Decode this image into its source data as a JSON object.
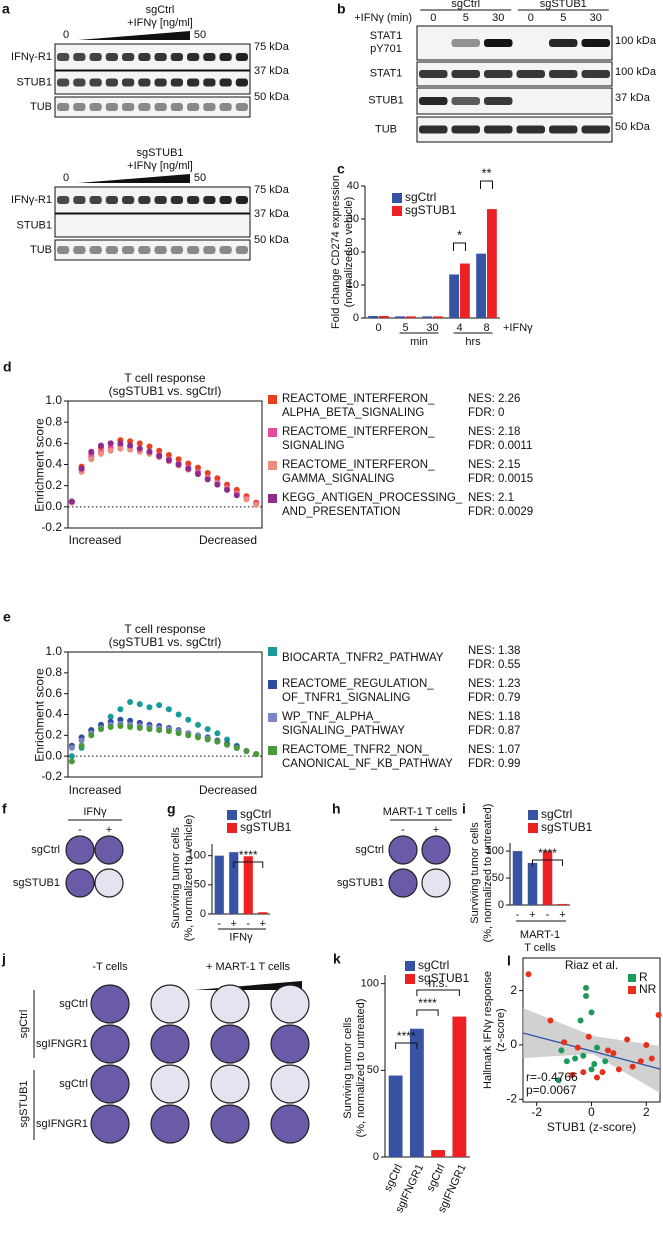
{
  "figure": {
    "a": {
      "label": "a",
      "top": {
        "group": "sgCtrl",
        "treatment": "+IFNγ [ng/ml]",
        "low": "0",
        "high": "50",
        "rows": [
          [
            "IFNγ-R1",
            "75 kDa"
          ],
          [
            "STUB1",
            "37 kDa"
          ],
          [
            "TUB",
            "50 kDa"
          ]
        ]
      },
      "bottom": {
        "group": "sgSTUB1",
        "treatment": "+IFNγ [ng/ml]",
        "low": "0",
        "high": "50",
        "rows": [
          [
            "IFNγ-R1",
            "75 kDa"
          ],
          [
            "STUB1",
            "37 kDa"
          ],
          [
            "TUB",
            "50 kDa"
          ]
        ]
      }
    },
    "b": {
      "label": "b",
      "treatment": "+IFNγ (min)",
      "lanes": [
        "0",
        "5",
        "30",
        "0",
        "5",
        "30"
      ],
      "groups": [
        "sgCtrl",
        "sgSTUB1"
      ],
      "rows": [
        [
          "STAT1\npY701",
          "100 kDa"
        ],
        [
          "STAT1",
          "100 kDa"
        ],
        [
          "STUB1",
          "37 kDa"
        ],
        [
          "TUB",
          "50 kDa"
        ]
      ]
    },
    "f": {
      "label": "f",
      "treatment": "IFNγ",
      "cols": [
        "-",
        "+"
      ],
      "rows": [
        "sgCtrl",
        "sgSTUB1"
      ]
    },
    "h": {
      "label": "h",
      "treatment": "MART-1 T cells",
      "cols": [
        "-",
        "+"
      ],
      "rows": [
        "sgCtrl",
        "sgSTUB1"
      ]
    },
    "j": {
      "label": "j",
      "control": "-T cells",
      "treatment": "+ MART-1 T cells",
      "rows": [
        "sgCtrl",
        "sgIFNGR1",
        "sgCtrl",
        "sgIFNGR1"
      ],
      "groups": [
        "sgCtrl",
        "sgSTUB1"
      ]
    }
  },
  "chart_data": [
    {
      "panel_label": "c",
      "type": "bar",
      "ylabel": "Fold change CD274 expression\n(normalized to vehicle)",
      "categories": [
        "0",
        "5",
        "30",
        "4",
        "8"
      ],
      "series": [
        {
          "name": "sgCtrl",
          "color": "#3853a4",
          "values": [
            0.6,
            0.5,
            0.5,
            13.2,
            19.5
          ]
        },
        {
          "name": "sgSTUB1",
          "color": "#ed2024",
          "values": [
            0.6,
            0.5,
            0.5,
            16.5,
            33
          ]
        }
      ],
      "ylim": [
        0,
        40
      ],
      "yticks": [
        0,
        10,
        20,
        30,
        40
      ],
      "groups": [
        "min",
        "hrs"
      ],
      "xlabel": "+IFNγ",
      "significance": [
        "*",
        "**"
      ]
    },
    {
      "panel_label": "d",
      "type": "scatter",
      "title": "T cell response\n(sgSTUB1 vs. sgCtrl)",
      "ylabel": "Enrichment score",
      "x_end_labels": [
        "Increased",
        "Decreased"
      ],
      "xlim": [
        0,
        1
      ],
      "x": [
        0.02,
        0.07,
        0.12,
        0.17,
        0.22,
        0.27,
        0.32,
        0.37,
        0.42,
        0.47,
        0.52,
        0.57,
        0.62,
        0.67,
        0.72,
        0.77,
        0.82,
        0.87,
        0.92,
        0.97
      ],
      "series": [
        {
          "name": "REACTOME_INTERFERON_\nALPHA_BETA_SIGNALING",
          "nes": "NES: 2.26",
          "fdr": "FDR: 0",
          "color": "#e8401c",
          "values": [
            0.05,
            0.38,
            0.5,
            0.56,
            0.6,
            0.63,
            0.62,
            0.6,
            0.57,
            0.53,
            0.49,
            0.45,
            0.41,
            0.37,
            0.32,
            0.27,
            0.21,
            0.16,
            0.1,
            0.04
          ]
        },
        {
          "name": "REACTOME_INTERFERON_\nSIGNALING",
          "nes": "NES: 2.18",
          "fdr": "FDR: 0.0011",
          "color": "#e84a9b",
          "values": [
            0.04,
            0.35,
            0.47,
            0.52,
            0.56,
            0.58,
            0.57,
            0.55,
            0.52,
            0.49,
            0.45,
            0.41,
            0.37,
            0.33,
            0.28,
            0.23,
            0.18,
            0.13,
            0.08,
            0.03
          ]
        },
        {
          "name": "REACTOME_INTERFERON_\nGAMMA_SIGNALING",
          "nes": "NES: 2.15",
          "fdr": "FDR: 0.0015",
          "color": "#f08c7c",
          "values": [
            0.04,
            0.33,
            0.45,
            0.5,
            0.53,
            0.55,
            0.54,
            0.52,
            0.5,
            0.47,
            0.43,
            0.39,
            0.35,
            0.31,
            0.27,
            0.22,
            0.17,
            0.12,
            0.07,
            0.02
          ]
        },
        {
          "name": "KEGG_ANTIGEN_PROCESSING_\nAND_PRESENTATION",
          "nes": "NES: 2.1",
          "fdr": "FDR: 0.0029",
          "color": "#8e2b8e",
          "values": [
            0.05,
            0.36,
            0.52,
            0.58,
            0.6,
            0.6,
            0.58,
            0.55,
            0.52,
            0.48,
            0.44,
            0.4,
            0.36,
            0.31,
            0.26,
            0.21,
            0.16,
            0.11,
            null,
            null
          ]
        }
      ],
      "ylim": [
        -0.2,
        1.0
      ],
      "yticks": [
        -0.2,
        {
          "value": 0,
          "label": "0.0"
        },
        0.2,
        0.4,
        0.6,
        0.8,
        {
          "value": 1,
          "label": "1.0"
        }
      ]
    },
    {
      "panel_label": "e",
      "type": "scatter",
      "title": "T cell response\n(sgSTUB1 vs. sgCtrl)",
      "ylabel": "Enrichment score",
      "x_end_labels": [
        "Increased",
        "Decreased"
      ],
      "xlim": [
        0,
        1
      ],
      "x": [
        0.02,
        0.07,
        0.12,
        0.17,
        0.22,
        0.27,
        0.32,
        0.37,
        0.42,
        0.47,
        0.52,
        0.57,
        0.62,
        0.67,
        0.72,
        0.77,
        0.82,
        0.87,
        0.92,
        0.97
      ],
      "series": [
        {
          "name": "BIOCARTA_TNFR2_PATHWAY",
          "nes": "NES: 1.38",
          "fdr": "FDR: 0.55",
          "color": "#1a9b9b",
          "values": [
            0.0,
            0.08,
            0.25,
            0.3,
            0.38,
            0.45,
            0.52,
            0.5,
            0.47,
            0.49,
            0.45,
            0.4,
            0.35,
            0.3,
            0.26,
            0.22,
            0.16,
            0.1,
            0.05,
            0.02
          ]
        },
        {
          "name": "REACTOME_REGULATION_\nOF_TNFR1_SIGNALING",
          "nes": "NES: 1.23",
          "fdr": "FDR: 0.79",
          "color": "#2e4c9d",
          "values": [
            0.1,
            0.18,
            0.25,
            0.3,
            0.33,
            0.35,
            0.34,
            0.32,
            0.3,
            0.29,
            0.27,
            0.25,
            0.22,
            0.2,
            0.18,
            0.15,
            0.12,
            0.09,
            0.05,
            0.02
          ]
        },
        {
          "name": "WP_TNF_ALPHA_\nSIGNALING_PATHWAY",
          "nes": "NES: 1.18",
          "fdr": "FDR: 0.87",
          "color": "#7b86c9",
          "values": [
            0.08,
            0.15,
            0.22,
            0.27,
            0.3,
            0.31,
            0.3,
            0.29,
            0.28,
            0.27,
            0.26,
            0.24,
            0.22,
            0.2,
            0.17,
            0.14,
            0.11,
            0.08,
            0.05,
            0.02
          ]
        },
        {
          "name": "REACTOME_TNFR2_NON_\nCANONICAL_NF_KB_PATHWAY",
          "nes": "NES: 1.07",
          "fdr": "FDR: 0.99",
          "color": "#4a9a3a",
          "values": [
            -0.05,
            0.1,
            0.2,
            0.26,
            0.28,
            0.29,
            0.28,
            0.27,
            0.26,
            0.25,
            0.24,
            0.22,
            0.2,
            0.18,
            0.16,
            0.14,
            0.11,
            0.08,
            0.05,
            0.02
          ]
        }
      ],
      "ylim": [
        -0.2,
        1.0
      ],
      "yticks": [
        -0.2,
        {
          "value": 0,
          "label": "0.0"
        },
        0.2,
        0.4,
        0.6,
        0.8,
        {
          "value": 1,
          "label": "1.0"
        }
      ]
    },
    {
      "panel_label": "g",
      "type": "bar",
      "ylabel": "Surviving tumor cells\n(%, normalized to vehicle)",
      "categories": [
        "-",
        "+",
        "-",
        "+"
      ],
      "series": [
        {
          "name": "sgCtrl",
          "color": "#3853a4",
          "values": [
            100,
            106,
            null,
            null
          ]
        },
        {
          "name": "sgSTUB1",
          "color": "#ed2024",
          "values": [
            null,
            null,
            99,
            3
          ]
        }
      ],
      "ylim": [
        0,
        120
      ],
      "yticks": [
        0,
        50,
        100
      ],
      "xlabel": "IFNγ",
      "significance": [
        "****"
      ]
    },
    {
      "panel_label": "i",
      "type": "bar",
      "ylabel": "Surviving tumor cells\n(%, normalized to untreated)",
      "categories": [
        "-",
        "+",
        "-",
        "+"
      ],
      "series": [
        {
          "name": "sgCtrl",
          "color": "#3853a4",
          "values": [
            100,
            78,
            null,
            null
          ]
        },
        {
          "name": "sgSTUB1",
          "color": "#ed2024",
          "values": [
            null,
            null,
            100,
            2
          ]
        }
      ],
      "ylim": [
        0,
        115
      ],
      "yticks": [
        0,
        50,
        100
      ],
      "xlabel": "MART-1\nT cells",
      "significance": [
        "****"
      ]
    },
    {
      "panel_label": "k",
      "type": "bar",
      "ylabel": "Surviving tumor cells\n(%, normalized to untreated)",
      "categories": [
        "sgCtrl",
        "sgIFNGR1",
        "sgCtrl",
        "sgIFNGR1"
      ],
      "series": [
        {
          "name": "sgCtrl",
          "color": "#3853a4",
          "values": [
            47,
            74,
            null,
            null
          ]
        },
        {
          "name": "sgSTUB1",
          "color": "#ed2024",
          "values": [
            null,
            null,
            4,
            81
          ]
        }
      ],
      "ylim": [
        0,
        105
      ],
      "yticks": [
        0,
        50,
        100
      ],
      "significance": [
        "****",
        "****",
        "n.s."
      ]
    },
    {
      "panel_label": "l",
      "type": "scatter",
      "title": "Riaz et al.",
      "xlabel": "STUB1 (z-score)",
      "ylabel": "Hallmark IFNγ response\n(z-score)",
      "annotations": [
        "r=-0.4766",
        "p=0.0067"
      ],
      "series": [
        {
          "name": "R",
          "color": "#1b9a5a",
          "x": [
            -1.1,
            -0.9,
            -1.2,
            -0.6,
            -0.3,
            -0.2,
            -0.2,
            0,
            0,
            0.1,
            0.2,
            0.5,
            -0.4
          ],
          "values": [
            -0.2,
            -0.6,
            -1.3,
            -0.5,
            -0.4,
            1.8,
            2.1,
            1.2,
            -0.9,
            -0.7,
            -0.1,
            -0.6,
            0.9
          ]
        },
        {
          "name": "NR",
          "color": "#e8301c",
          "x": [
            -2.3,
            -1.5,
            -1.0,
            -0.7,
            -0.5,
            -0.3,
            -0.1,
            0.2,
            0.4,
            0.6,
            0.8,
            1.0,
            1.3,
            1.5,
            1.8,
            2.0,
            2.2,
            2.45
          ],
          "values": [
            2.6,
            0.9,
            0.1,
            -1.1,
            -0.1,
            -1.0,
            0.3,
            -1.2,
            -1.0,
            -0.2,
            -0.3,
            -0.9,
            0.2,
            -0.8,
            -0.6,
            0.0,
            -0.5,
            1.1
          ]
        }
      ],
      "xlim": [
        -2.5,
        2.5
      ],
      "ylim": [
        -2.1,
        3.2
      ],
      "xticks": [
        -2,
        0,
        2
      ],
      "yticks": [
        -2,
        0,
        2
      ]
    }
  ]
}
